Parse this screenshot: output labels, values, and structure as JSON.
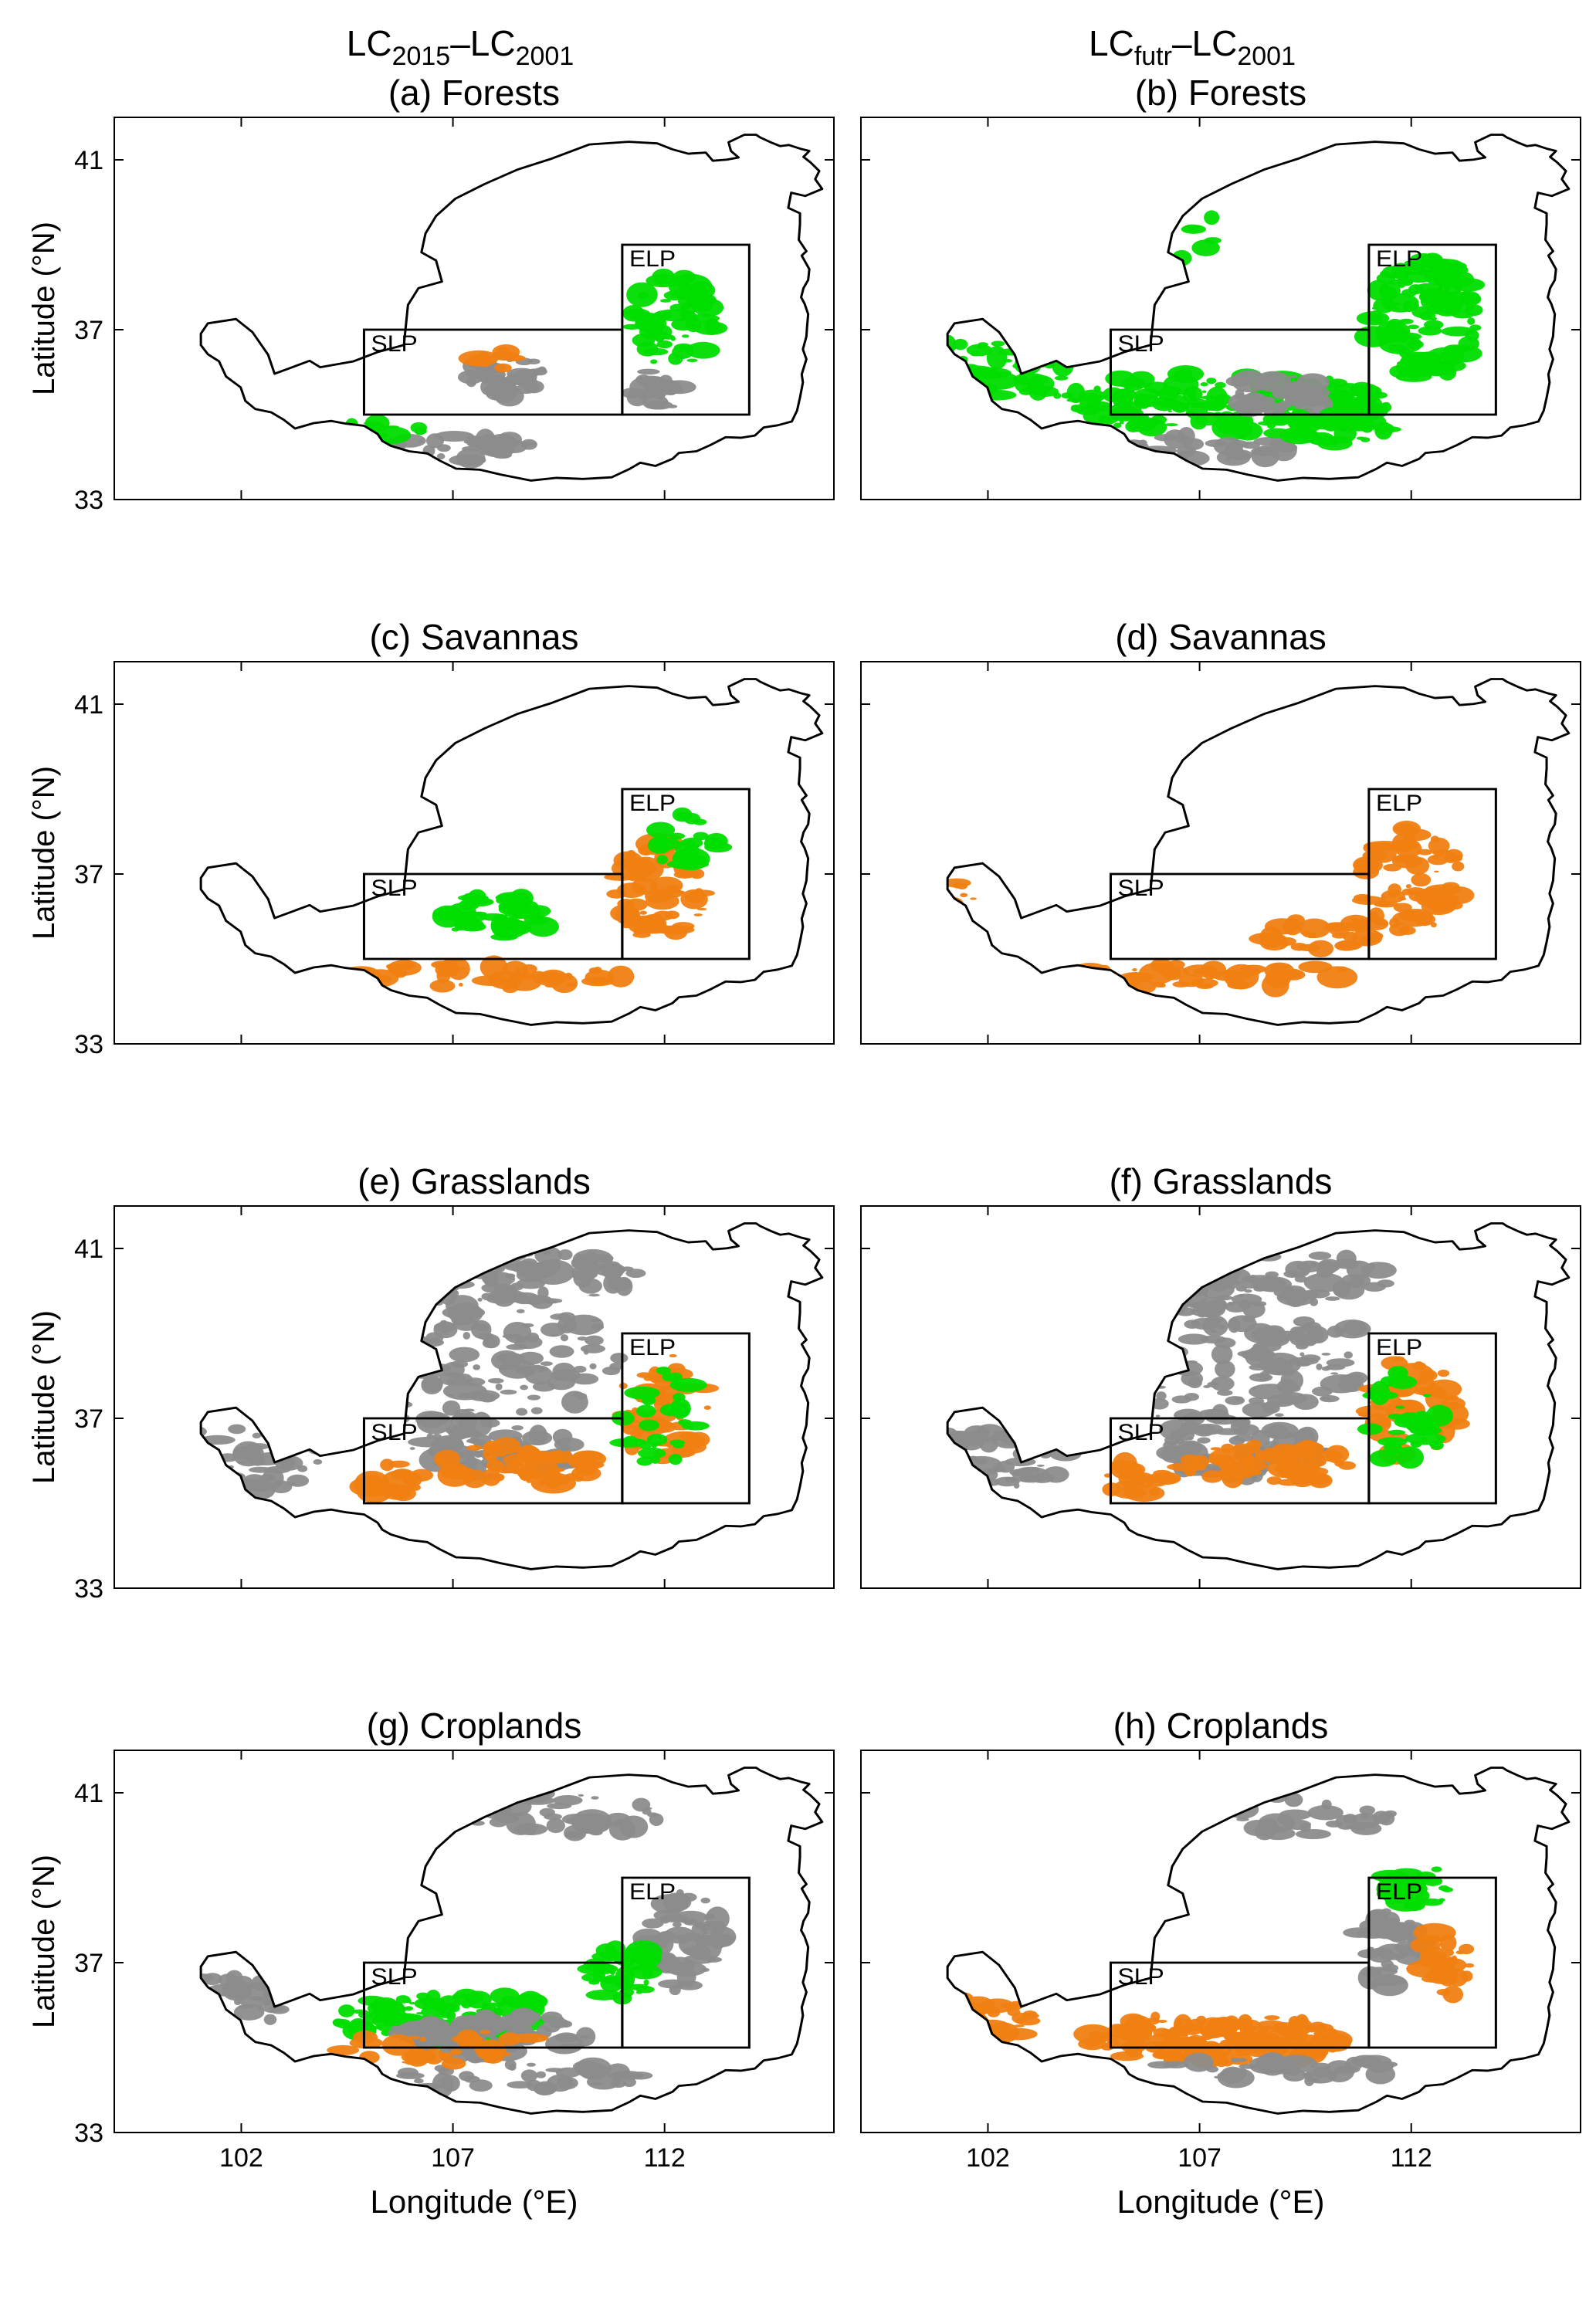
{
  "columns": [
    {
      "id": "col-left",
      "header_base": "LC",
      "header_sub1": "2015",
      "header_dash": "–",
      "header_base2": "LC",
      "header_sub2": "2001"
    },
    {
      "id": "col-right",
      "header_base": "LC",
      "header_sub1": "futr",
      "header_dash": "–",
      "header_base2": "LC",
      "header_sub2": "2001"
    }
  ],
  "panels": [
    {
      "label": "(a) Forests",
      "class": "forests",
      "period": "2015"
    },
    {
      "label": "(b) Forests",
      "class": "forests",
      "period": "futr"
    },
    {
      "label": "(c) Savannas",
      "class": "savannas",
      "period": "2015"
    },
    {
      "label": "(d) Savannas",
      "class": "savannas",
      "period": "futr"
    },
    {
      "label": "(e) Grasslands",
      "class": "grasslands",
      "period": "2015"
    },
    {
      "label": "(f) Grasslands",
      "class": "grasslands",
      "period": "futr"
    },
    {
      "label": "(g) Croplands",
      "class": "croplands",
      "period": "2015"
    },
    {
      "label": "(h) Croplands",
      "class": "croplands",
      "period": "futr"
    }
  ],
  "map": {
    "lon_range": [
      99,
      116
    ],
    "lat_range": [
      33,
      42
    ],
    "lon_ticks": [
      "102",
      "107",
      "112"
    ],
    "lat_ticks": [
      "41",
      "37",
      "33"
    ],
    "xlabel": "Longitude (°E)",
    "ylabel": "Latitude (°N)",
    "regions": [
      {
        "name": "SLP",
        "lon": [
          104.9,
          111.0
        ],
        "lat": [
          35.0,
          37.0
        ]
      },
      {
        "name": "ELP",
        "lon": [
          111.0,
          114.0
        ],
        "lat": [
          35.0,
          39.0
        ]
      }
    ],
    "colors": {
      "gain": "#00dd00",
      "loss": "#f07f12",
      "unchanged": "#8c8c8c",
      "outline": "#000000"
    }
  }
}
